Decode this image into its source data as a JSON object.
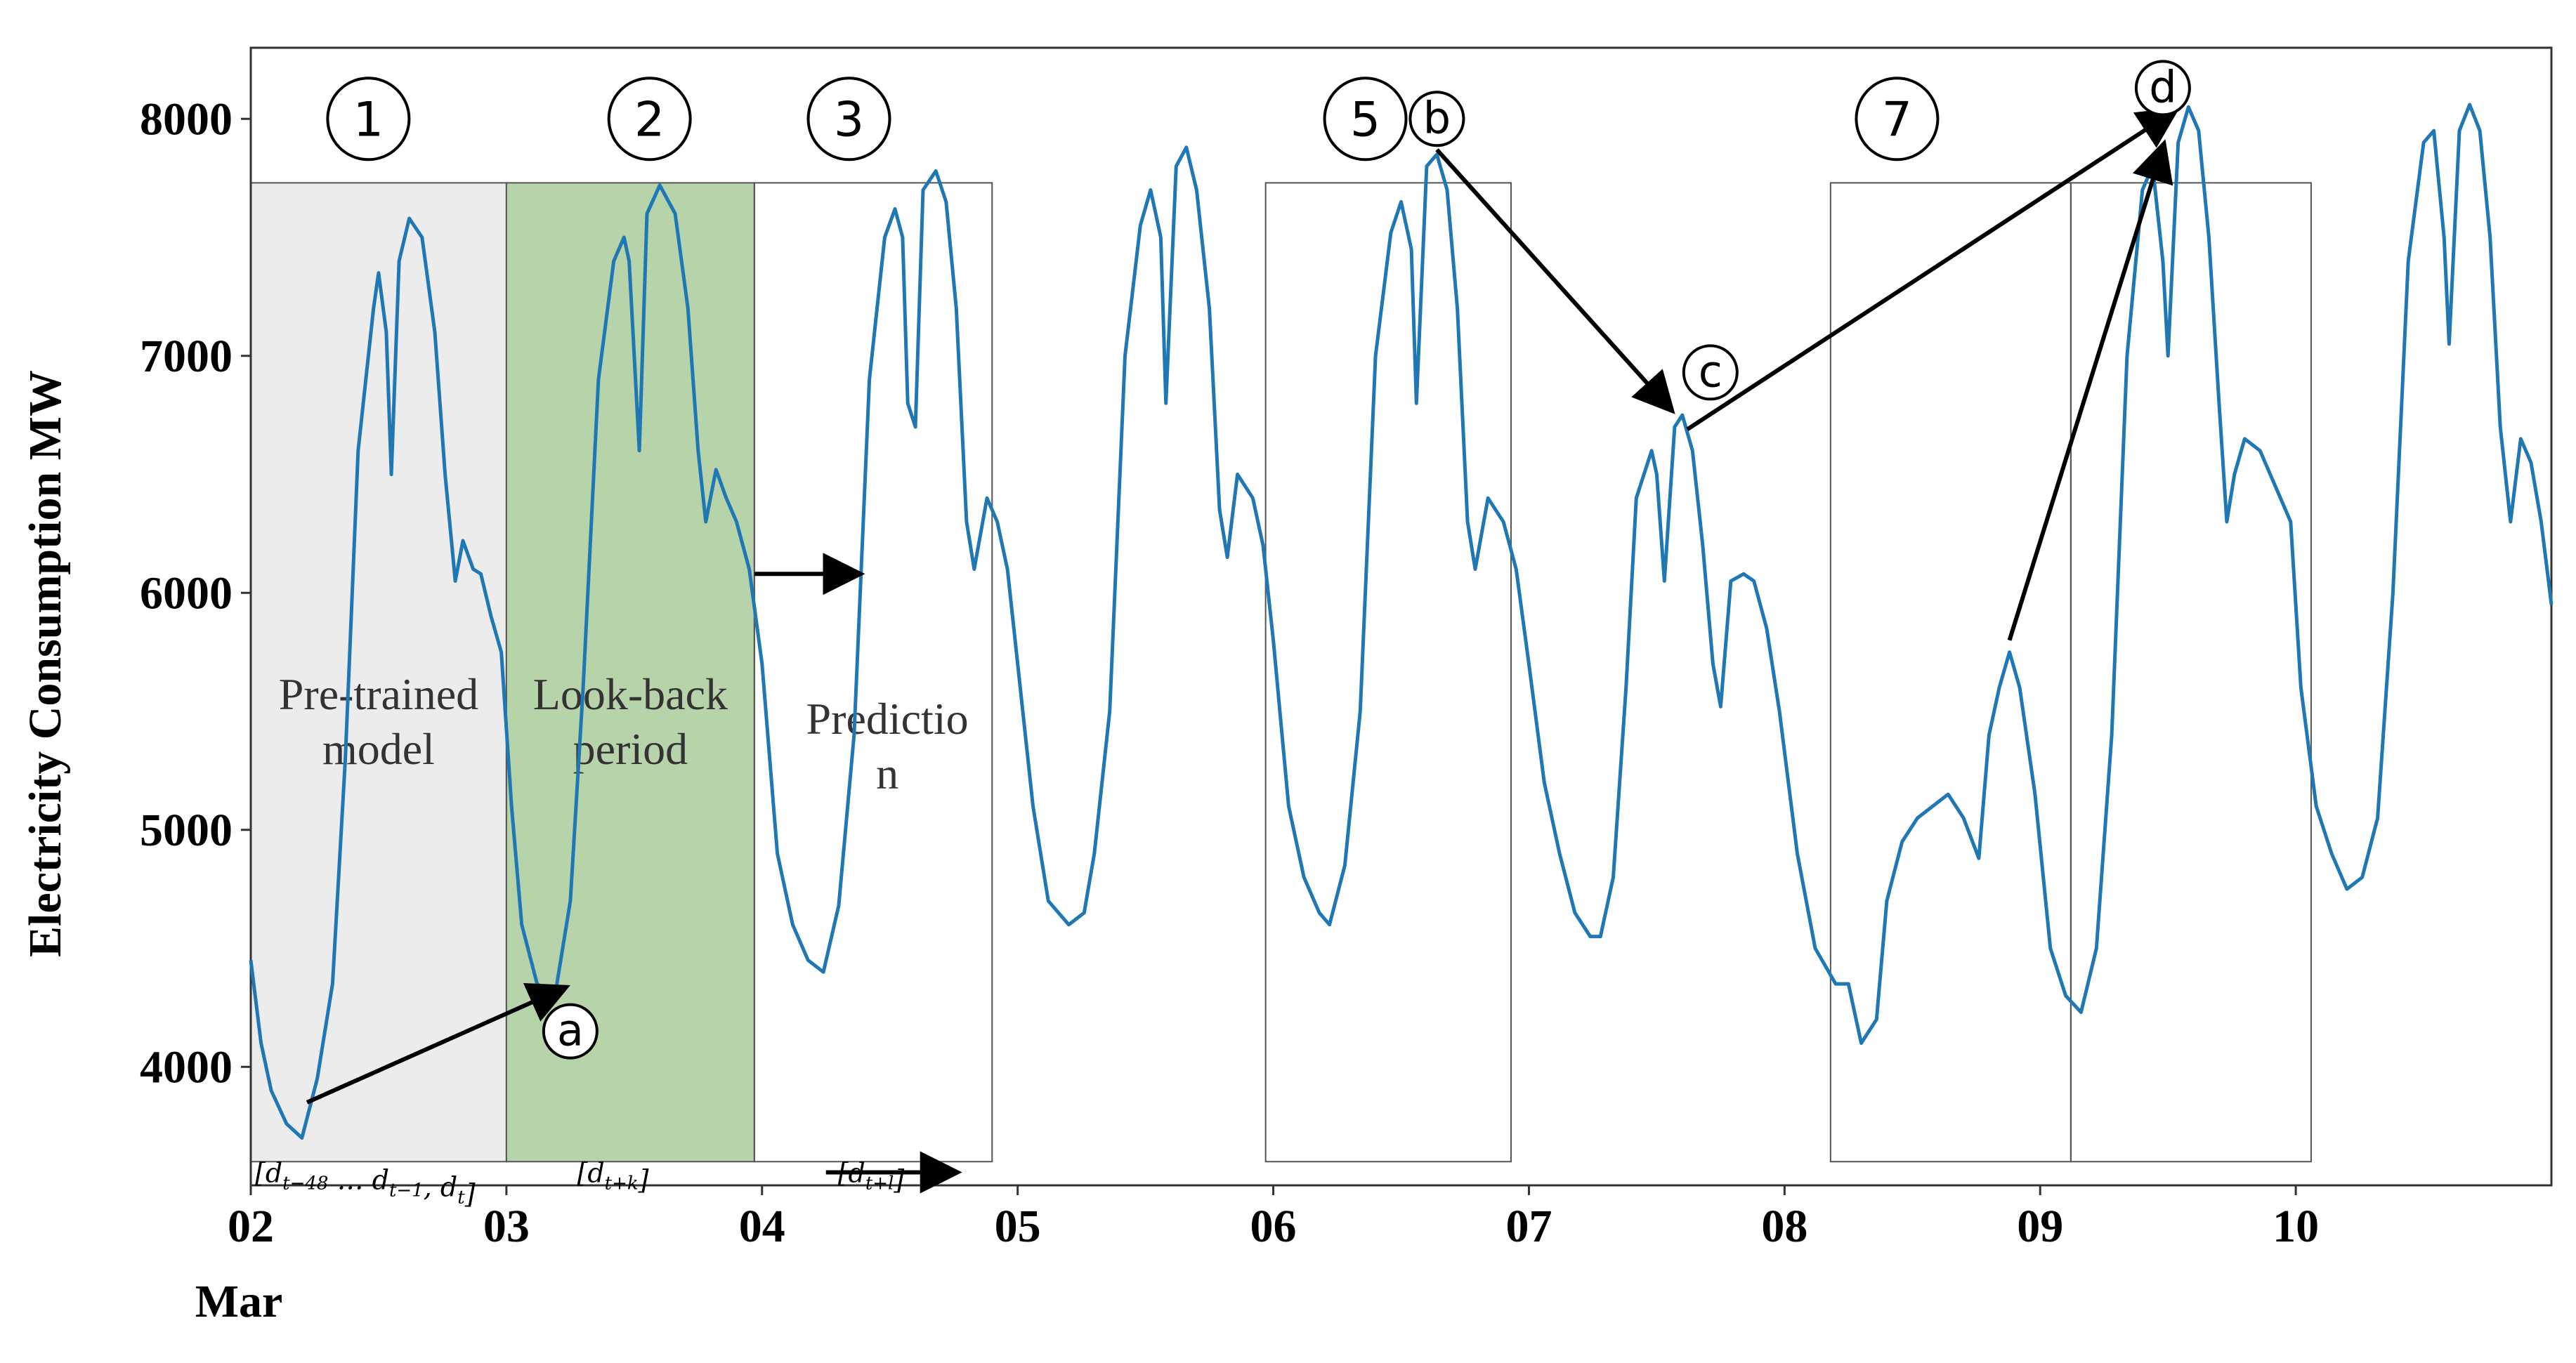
{
  "chart_data": {
    "type": "line",
    "title": "",
    "xlabel": "",
    "ylabel": "Electricity Consumption MW",
    "xlim": [
      2,
      11
    ],
    "ylim": [
      3500,
      8300
    ],
    "yticks": [
      4000,
      5000,
      6000,
      7000,
      8000
    ],
    "xticks": [
      {
        "value": 2,
        "label": "02"
      },
      {
        "value": 3,
        "label": "03"
      },
      {
        "value": 4,
        "label": "04"
      },
      {
        "value": 5,
        "label": "05"
      },
      {
        "value": 6,
        "label": "06"
      },
      {
        "value": 7,
        "label": "07"
      },
      {
        "value": 8,
        "label": "08"
      },
      {
        "value": 9,
        "label": "09"
      },
      {
        "value": 10,
        "label": "10"
      }
    ],
    "xsublabel": "Mar",
    "series": [
      {
        "color": "#1f77b4",
        "points": [
          [
            2.0,
            4450
          ],
          [
            2.04,
            4100
          ],
          [
            2.08,
            3900
          ],
          [
            2.14,
            3760
          ],
          [
            2.2,
            3700
          ],
          [
            2.26,
            3950
          ],
          [
            2.32,
            4350
          ],
          [
            2.37,
            5300
          ],
          [
            2.42,
            6600
          ],
          [
            2.48,
            7200
          ],
          [
            2.5,
            7350
          ],
          [
            2.53,
            7100
          ],
          [
            2.55,
            6500
          ],
          [
            2.58,
            7400
          ],
          [
            2.62,
            7580
          ],
          [
            2.67,
            7500
          ],
          [
            2.72,
            7100
          ],
          [
            2.76,
            6500
          ],
          [
            2.8,
            6050
          ],
          [
            2.83,
            6220
          ],
          [
            2.87,
            6100
          ],
          [
            2.9,
            6080
          ],
          [
            2.94,
            5900
          ],
          [
            2.98,
            5750
          ],
          [
            3.02,
            5100
          ],
          [
            3.06,
            4600
          ],
          [
            3.12,
            4350
          ],
          [
            3.19,
            4300
          ],
          [
            3.25,
            4700
          ],
          [
            3.3,
            5600
          ],
          [
            3.36,
            6900
          ],
          [
            3.42,
            7400
          ],
          [
            3.46,
            7500
          ],
          [
            3.48,
            7400
          ],
          [
            3.52,
            6600
          ],
          [
            3.55,
            7600
          ],
          [
            3.6,
            7720
          ],
          [
            3.66,
            7600
          ],
          [
            3.71,
            7200
          ],
          [
            3.75,
            6600
          ],
          [
            3.78,
            6300
          ],
          [
            3.82,
            6520
          ],
          [
            3.86,
            6400
          ],
          [
            3.9,
            6300
          ],
          [
            3.95,
            6100
          ],
          [
            4.0,
            5700
          ],
          [
            4.06,
            4900
          ],
          [
            4.12,
            4600
          ],
          [
            4.18,
            4450
          ],
          [
            4.24,
            4400
          ],
          [
            4.3,
            4680
          ],
          [
            4.36,
            5400
          ],
          [
            4.42,
            6900
          ],
          [
            4.48,
            7500
          ],
          [
            4.52,
            7620
          ],
          [
            4.55,
            7500
          ],
          [
            4.57,
            6800
          ],
          [
            4.6,
            6700
          ],
          [
            4.63,
            7700
          ],
          [
            4.68,
            7780
          ],
          [
            4.72,
            7650
          ],
          [
            4.76,
            7200
          ],
          [
            4.8,
            6300
          ],
          [
            4.83,
            6100
          ],
          [
            4.88,
            6400
          ],
          [
            4.92,
            6300
          ],
          [
            4.96,
            6100
          ],
          [
            5.0,
            5700
          ],
          [
            5.06,
            5100
          ],
          [
            5.12,
            4700
          ],
          [
            5.2,
            4600
          ],
          [
            5.26,
            4650
          ],
          [
            5.3,
            4900
          ],
          [
            5.36,
            5500
          ],
          [
            5.42,
            7000
          ],
          [
            5.48,
            7550
          ],
          [
            5.52,
            7700
          ],
          [
            5.56,
            7500
          ],
          [
            5.58,
            6800
          ],
          [
            5.62,
            7800
          ],
          [
            5.66,
            7880
          ],
          [
            5.7,
            7700
          ],
          [
            5.75,
            7200
          ],
          [
            5.79,
            6350
          ],
          [
            5.82,
            6150
          ],
          [
            5.86,
            6500
          ],
          [
            5.92,
            6400
          ],
          [
            5.96,
            6200
          ],
          [
            6.0,
            5800
          ],
          [
            6.06,
            5100
          ],
          [
            6.12,
            4800
          ],
          [
            6.18,
            4650
          ],
          [
            6.22,
            4600
          ],
          [
            6.28,
            4850
          ],
          [
            6.34,
            5500
          ],
          [
            6.4,
            7000
          ],
          [
            6.46,
            7520
          ],
          [
            6.5,
            7650
          ],
          [
            6.54,
            7450
          ],
          [
            6.56,
            6800
          ],
          [
            6.6,
            7800
          ],
          [
            6.64,
            7850
          ],
          [
            6.68,
            7700
          ],
          [
            6.72,
            7200
          ],
          [
            6.76,
            6300
          ],
          [
            6.79,
            6100
          ],
          [
            6.84,
            6400
          ],
          [
            6.9,
            6300
          ],
          [
            6.95,
            6100
          ],
          [
            7.0,
            5700
          ],
          [
            7.06,
            5200
          ],
          [
            7.12,
            4900
          ],
          [
            7.18,
            4650
          ],
          [
            7.24,
            4550
          ],
          [
            7.28,
            4550
          ],
          [
            7.33,
            4800
          ],
          [
            7.38,
            5600
          ],
          [
            7.42,
            6400
          ],
          [
            7.48,
            6600
          ],
          [
            7.5,
            6500
          ],
          [
            7.53,
            6050
          ],
          [
            7.57,
            6700
          ],
          [
            7.6,
            6750
          ],
          [
            7.64,
            6600
          ],
          [
            7.68,
            6200
          ],
          [
            7.72,
            5700
          ],
          [
            7.75,
            5520
          ],
          [
            7.79,
            6050
          ],
          [
            7.84,
            6080
          ],
          [
            7.88,
            6050
          ],
          [
            7.93,
            5850
          ],
          [
            7.98,
            5500
          ],
          [
            8.05,
            4900
          ],
          [
            8.12,
            4500
          ],
          [
            8.2,
            4350
          ],
          [
            8.25,
            4350
          ],
          [
            8.3,
            4100
          ],
          [
            8.36,
            4200
          ],
          [
            8.4,
            4700
          ],
          [
            8.46,
            4950
          ],
          [
            8.52,
            5050
          ],
          [
            8.58,
            5100
          ],
          [
            8.64,
            5150
          ],
          [
            8.7,
            5050
          ],
          [
            8.76,
            4880
          ],
          [
            8.8,
            5400
          ],
          [
            8.84,
            5600
          ],
          [
            8.88,
            5750
          ],
          [
            8.92,
            5600
          ],
          [
            8.98,
            5150
          ],
          [
            9.04,
            4500
          ],
          [
            9.1,
            4300
          ],
          [
            9.16,
            4230
          ],
          [
            9.22,
            4500
          ],
          [
            9.28,
            5400
          ],
          [
            9.34,
            7000
          ],
          [
            9.4,
            7700
          ],
          [
            9.44,
            7800
          ],
          [
            9.48,
            7400
          ],
          [
            9.5,
            7000
          ],
          [
            9.54,
            7900
          ],
          [
            9.58,
            8050
          ],
          [
            9.62,
            7950
          ],
          [
            9.66,
            7500
          ],
          [
            9.7,
            6800
          ],
          [
            9.73,
            6300
          ],
          [
            9.76,
            6500
          ],
          [
            9.8,
            6650
          ],
          [
            9.86,
            6600
          ],
          [
            9.92,
            6450
          ],
          [
            9.98,
            6300
          ],
          [
            10.02,
            5600
          ],
          [
            10.08,
            5100
          ],
          [
            10.14,
            4900
          ],
          [
            10.2,
            4750
          ],
          [
            10.26,
            4800
          ],
          [
            10.32,
            5050
          ],
          [
            10.38,
            6000
          ],
          [
            10.44,
            7400
          ],
          [
            10.5,
            7900
          ],
          [
            10.54,
            7950
          ],
          [
            10.58,
            7500
          ],
          [
            10.6,
            7050
          ],
          [
            10.64,
            7950
          ],
          [
            10.68,
            8060
          ],
          [
            10.72,
            7950
          ],
          [
            10.76,
            7500
          ],
          [
            10.8,
            6700
          ],
          [
            10.84,
            6300
          ],
          [
            10.88,
            6650
          ],
          [
            10.92,
            6550
          ],
          [
            10.96,
            6300
          ],
          [
            11.0,
            5950
          ]
        ]
      }
    ],
    "shaded_regions": [
      {
        "x0": 2.0,
        "x1": 3.0,
        "y0": 3600,
        "y1": 7730,
        "fill": "#ececec",
        "label": [
          "Pre-trained",
          "model"
        ]
      },
      {
        "x0": 3.0,
        "x1": 3.97,
        "y0": 3600,
        "y1": 7730,
        "fill": "#b6d3aa",
        "label": [
          "Look-back",
          "period"
        ]
      }
    ],
    "outline_boxes": [
      {
        "x0": 3.97,
        "x1": 4.9,
        "y0": 3600,
        "y1": 7730,
        "label": [
          "Predictio",
          "n"
        ]
      },
      {
        "x0": 5.97,
        "x1": 6.93,
        "y0": 3600,
        "y1": 7730
      },
      {
        "x0": 8.18,
        "x1": 9.12,
        "y0": 3600,
        "y1": 7730
      },
      {
        "x0": 9.12,
        "x1": 10.06,
        "y0": 3600,
        "y1": 7730
      }
    ],
    "numbered_markers": [
      {
        "label": "1",
        "x": 2.46,
        "y": 8000
      },
      {
        "label": "2",
        "x": 3.56,
        "y": 8000
      },
      {
        "label": "3",
        "x": 4.34,
        "y": 8000
      },
      {
        "label": "5",
        "x": 6.36,
        "y": 8000
      },
      {
        "label": "7",
        "x": 8.44,
        "y": 8000
      }
    ],
    "point_markers": [
      {
        "label": "a",
        "x": 3.25,
        "y": 4150
      },
      {
        "label": "b",
        "x": 6.64,
        "y": 8000
      },
      {
        "label": "c",
        "x": 7.71,
        "y": 6930
      },
      {
        "label": "d",
        "x": 9.48,
        "y": 8130
      }
    ],
    "arrows": [
      {
        "from": [
          2.22,
          3850
        ],
        "to": [
          3.22,
          4330
        ]
      },
      {
        "from": [
          3.97,
          6080
        ],
        "to": [
          4.37,
          6080
        ]
      },
      {
        "from": [
          6.64,
          7870
        ],
        "to": [
          7.55,
          6780
        ]
      },
      {
        "from": [
          7.62,
          6690
        ],
        "to": [
          9.52,
          8030
        ]
      },
      {
        "from": [
          8.88,
          5800
        ],
        "to": [
          9.48,
          7880
        ]
      },
      {
        "from": [
          4.25,
          3555
        ],
        "to": [
          4.75,
          3555
        ]
      }
    ],
    "formula_labels": [
      {
        "text": "[d_{t−48} … d_{t−1}, d_t]",
        "x": 2.0,
        "y": 3555
      },
      {
        "text": "[d_{t+k}]",
        "x": 3.26,
        "y": 3555
      },
      {
        "text": "[d_{t+l}]",
        "x": 4.28,
        "y": 3555
      }
    ]
  }
}
